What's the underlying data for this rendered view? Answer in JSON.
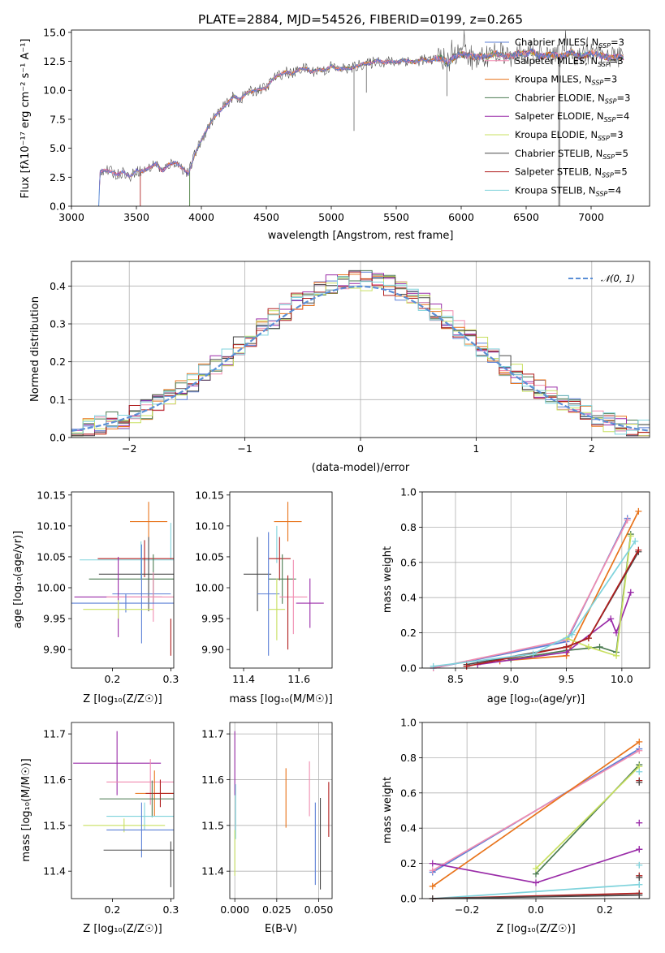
{
  "figure_title": "PLATE=2884, MJD=54526, FIBERID=0199, z=0.265",
  "chart_data": [
    {
      "id": "spectrum",
      "type": "line",
      "xlabel": "wavelength [Angstrom, rest frame]",
      "ylabel": "Flux [fλ10⁻¹⁷ erg cm⁻² s⁻¹ A⁻¹]",
      "xlim": [
        3000,
        7450
      ],
      "ylim": [
        0,
        15.2
      ],
      "xticks": [
        "3000",
        "3500",
        "4000",
        "4500",
        "5000",
        "5500",
        "6000",
        "6500",
        "7000"
      ],
      "yticks": [
        "0.0",
        "2.5",
        "5.0",
        "7.5",
        "10.0",
        "12.5",
        "15.0"
      ],
      "legend_position": "top-right",
      "legend": [
        {
          "name": "Chabrier MILES, N",
          "sub": "SSP",
          "val": "=3",
          "color": "#5b7fd6"
        },
        {
          "name": "Salpeter MILES, N",
          "sub": "SSP",
          "val": "=3",
          "color": "#f08cb0"
        },
        {
          "name": "Kroupa MILES, N",
          "sub": "SSP",
          "val": "=3",
          "color": "#e8731a"
        },
        {
          "name": "Chabrier ELODIE, N",
          "sub": "SSP",
          "val": "=3",
          "color": "#4a7a50"
        },
        {
          "name": "Salpeter ELODIE, N",
          "sub": "SSP",
          "val": "=4",
          "color": "#9a2ca8"
        },
        {
          "name": "Kroupa ELODIE, N",
          "sub": "SSP",
          "val": "=3",
          "color": "#c8e060"
        },
        {
          "name": "Chabrier STELIB, N",
          "sub": "SSP",
          "val": "=5",
          "color": "#4a4a4a"
        },
        {
          "name": "Salpeter STELIB, N",
          "sub": "SSP",
          "val": "=5",
          "color": "#b01e1e"
        },
        {
          "name": "Kroupa STELIB, N",
          "sub": "SSP",
          "val": "=4",
          "color": "#7fd3dc"
        }
      ],
      "series_outline": {
        "x": [
          3210,
          3220,
          3250,
          3300,
          3350,
          3400,
          3450,
          3500,
          3550,
          3600,
          3650,
          3700,
          3750,
          3800,
          3850,
          3900,
          3950,
          4000,
          4050,
          4100,
          4150,
          4200,
          4250,
          4300,
          4350,
          4400,
          4450,
          4500,
          4550,
          4600,
          4650,
          4700,
          4750,
          4800,
          4850,
          4900,
          4950,
          5000,
          5050,
          5100,
          5150,
          5200,
          5250,
          5300,
          5350,
          5400,
          5450,
          5500,
          5550,
          5600,
          5650,
          5700,
          5750,
          5800,
          5850,
          5900,
          5950,
          6000,
          6050,
          6100,
          6150,
          6200,
          6250,
          6300,
          6350,
          6400,
          6450,
          6500,
          6550,
          6600,
          6650,
          6700,
          6750,
          6800,
          6850,
          6900,
          6950,
          7000,
          7050,
          7100,
          7150,
          7200,
          7250
        ],
        "y": [
          0.0,
          3.0,
          3.1,
          3.0,
          2.7,
          3.0,
          2.5,
          3.1,
          3.0,
          3.3,
          3.7,
          3.0,
          3.6,
          3.8,
          3.3,
          2.8,
          4.5,
          5.7,
          6.8,
          7.7,
          8.3,
          8.9,
          9.5,
          9.2,
          9.8,
          9.9,
          10.1,
          10.2,
          11.0,
          11.3,
          11.6,
          11.4,
          11.8,
          11.9,
          11.6,
          11.8,
          11.7,
          12.1,
          11.8,
          11.9,
          11.9,
          12.1,
          12.3,
          12.3,
          12.6,
          12.4,
          12.5,
          12.4,
          12.6,
          12.5,
          12.4,
          12.7,
          12.5,
          12.7,
          12.8,
          12.3,
          12.9,
          13.1,
          13.0,
          12.9,
          12.9,
          12.9,
          13.2,
          13.1,
          12.9,
          13.0,
          13.2,
          13.1,
          13.4,
          12.9,
          13.0,
          13.1,
          12.9,
          13.0,
          13.3,
          12.9,
          13.0,
          13.2,
          13.1,
          12.9,
          12.8,
          12.9,
          12.8
        ]
      },
      "cutoffs": [
        {
          "series": "Salpeter STELIB",
          "x": 3530
        },
        {
          "series": "Chabrier ELODIE",
          "x": 3910
        },
        {
          "series": "Kroupa ELODIE",
          "x": 3910
        },
        {
          "series": "Chabrier MILES",
          "x": 3210
        },
        {
          "series": "Kroupa STELIB",
          "x": 3210
        }
      ]
    },
    {
      "id": "residuals",
      "type": "line",
      "xlabel": "(data-model)/error",
      "ylabel": "Normed distribution",
      "xlim": [
        -2.5,
        2.5
      ],
      "ylim": [
        0,
        0.465
      ],
      "xticks": [
        "−2",
        "−1",
        "0",
        "1",
        "2"
      ],
      "yticks": [
        "0.0",
        "0.1",
        "0.2",
        "0.3",
        "0.4"
      ],
      "grid": true,
      "legend_position": "top-right",
      "legend_label": "𝒩(0, 1)",
      "gaussian_color": "#5b8fd6"
    },
    {
      "id": "age-vs-Z",
      "type": "scatter",
      "xlabel": "Z [log₁₀(Z/Z☉)]",
      "ylabel": "age  [log₁₀(age/yr)]",
      "xlim": [
        0.13,
        0.305
      ],
      "ylim": [
        9.87,
        10.155
      ],
      "xticks": [
        "0.2",
        "0.3"
      ],
      "yticks": [
        "9.90",
        "9.95",
        "10.00",
        "10.05",
        "10.10",
        "10.15"
      ],
      "points": [
        {
          "x": 0.262,
          "y": 10.107,
          "xerr": 0.032,
          "yerr": 0.032,
          "color": "#e8731a"
        },
        {
          "x": 0.3,
          "y": 10.075,
          "xerr": 0.0,
          "yerr": 0.03,
          "color": "#7fd3dc"
        },
        {
          "x": 0.249,
          "y": 10.045,
          "xerr": 0.105,
          "yerr": 0.03,
          "color": "#7fd3dc"
        },
        {
          "x": 0.255,
          "y": 10.047,
          "xerr": 0.08,
          "yerr": 0.03,
          "color": "#b01e1e"
        },
        {
          "x": 0.262,
          "y": 10.022,
          "xerr": 0.085,
          "yerr": 0.06,
          "color": "#4a4a4a"
        },
        {
          "x": 0.27,
          "y": 10.014,
          "xerr": 0.11,
          "yerr": 0.04,
          "color": "#4a7a50"
        },
        {
          "x": 0.25,
          "y": 9.99,
          "xerr": 0.05,
          "yerr": 0.08,
          "color": "#5b7fd6"
        },
        {
          "x": 0.21,
          "y": 9.985,
          "xerr": 0.075,
          "yerr": 0.065,
          "color": "#9a2ca8"
        },
        {
          "x": 0.27,
          "y": 9.985,
          "xerr": 0.08,
          "yerr": 0.04,
          "color": "#f08cb0"
        },
        {
          "x": 0.223,
          "y": 9.975,
          "xerr": 0.095,
          "yerr": 0.015,
          "color": "#5b7fd6"
        },
        {
          "x": 0.21,
          "y": 9.965,
          "xerr": 0.06,
          "yerr": 0.015,
          "color": "#c8e060"
        },
        {
          "x": 0.3,
          "y": 9.92,
          "xerr": 0.0,
          "yerr": 0.03,
          "color": "#b01e1e"
        }
      ]
    },
    {
      "id": "age-vs-mass",
      "type": "scatter",
      "xlabel": "mass [log₁₀(M/M☉)]",
      "ylabel": "",
      "xlim": [
        11.35,
        11.72
      ],
      "ylim": [
        9.87,
        10.155
      ],
      "xticks": [
        "11.4",
        "11.6"
      ],
      "yticks": [
        "9.90",
        "9.95",
        "10.00",
        "10.05",
        "10.10",
        "10.15"
      ],
      "points": [
        {
          "x": 11.56,
          "y": 10.107,
          "xerr": 0.05,
          "yerr": 0.032,
          "color": "#e8731a"
        },
        {
          "x": 11.52,
          "y": 10.07,
          "xerr": 0.0,
          "yerr": 0.03,
          "color": "#7fd3dc"
        },
        {
          "x": 11.53,
          "y": 10.047,
          "xerr": 0.04,
          "yerr": 0.035,
          "color": "#b01e1e"
        },
        {
          "x": 11.45,
          "y": 10.022,
          "xerr": 0.05,
          "yerr": 0.06,
          "color": "#4a4a4a"
        },
        {
          "x": 11.54,
          "y": 10.014,
          "xerr": 0.05,
          "yerr": 0.04,
          "color": "#4a7a50"
        },
        {
          "x": 11.49,
          "y": 9.99,
          "xerr": 0.04,
          "yerr": 0.1,
          "color": "#5b7fd6"
        },
        {
          "x": 11.58,
          "y": 9.985,
          "xerr": 0.05,
          "yerr": 0.06,
          "color": "#f08cb0"
        },
        {
          "x": 11.64,
          "y": 9.975,
          "xerr": 0.05,
          "yerr": 0.04,
          "color": "#9a2ca8"
        },
        {
          "x": 11.52,
          "y": 9.965,
          "xerr": 0.03,
          "yerr": 0.05,
          "color": "#c8e060"
        },
        {
          "x": 11.56,
          "y": 9.96,
          "xerr": 0.0,
          "yerr": 0.06,
          "color": "#b01e1e"
        }
      ]
    },
    {
      "id": "massweight-vs-age",
      "type": "line",
      "xlabel": "age  [log₁₀(age/yr)]",
      "ylabel": "mass weight",
      "xlim": [
        8.2,
        10.25
      ],
      "ylim": [
        0,
        1.0
      ],
      "xticks": [
        "8.5",
        "9.0",
        "9.5",
        "10.0"
      ],
      "yticks": [
        "0.0",
        "0.2",
        "0.4",
        "0.6",
        "0.8",
        "1.0"
      ],
      "grid": true,
      "series": [
        {
          "color": "#5b7fd6",
          "x": [
            8.3,
            9.5,
            10.05
          ],
          "y": [
            0.0,
            0.15,
            0.85
          ]
        },
        {
          "color": "#f08cb0",
          "x": [
            8.3,
            9.5,
            10.05
          ],
          "y": [
            0.0,
            0.16,
            0.84
          ]
        },
        {
          "color": "#e8731a",
          "x": [
            8.9,
            9.5,
            10.15
          ],
          "y": [
            0.04,
            0.07,
            0.89
          ]
        },
        {
          "color": "#4a7a50",
          "x": [
            9.0,
            9.5,
            9.8,
            9.95,
            10.08
          ],
          "y": [
            0.05,
            0.1,
            0.12,
            0.09,
            0.76
          ]
        },
        {
          "color": "#9a2ca8",
          "x": [
            8.7,
            9.5,
            9.9,
            9.95,
            10.08
          ],
          "y": [
            0.02,
            0.09,
            0.28,
            0.2,
            0.43
          ]
        },
        {
          "color": "#c8e060",
          "x": [
            9.5,
            9.7,
            9.95,
            10.08
          ],
          "y": [
            0.17,
            0.12,
            0.07,
            0.75
          ]
        },
        {
          "color": "#4a4a4a",
          "x": [
            8.6,
            9.5,
            9.7,
            10.15
          ],
          "y": [
            0.02,
            0.12,
            0.17,
            0.66
          ]
        },
        {
          "color": "#b01e1e",
          "x": [
            8.6,
            9.5,
            9.7,
            10.15
          ],
          "y": [
            0.01,
            0.12,
            0.17,
            0.67
          ]
        },
        {
          "color": "#7fd3dc",
          "x": [
            8.3,
            9.2,
            9.55,
            10.12
          ],
          "y": [
            0.01,
            0.08,
            0.19,
            0.72
          ]
        }
      ]
    },
    {
      "id": "mass-vs-Z",
      "type": "scatter",
      "xlabel": "Z [log₁₀(Z/Z☉)]",
      "ylabel": "mass [log₁₀(M/M☉)]",
      "xlim": [
        0.13,
        0.305
      ],
      "ylim": [
        11.34,
        11.725
      ],
      "xticks": [
        "0.2",
        "0.3"
      ],
      "yticks": [
        "11.4",
        "11.5",
        "11.6",
        "11.7"
      ],
      "points": [
        {
          "x": 0.208,
          "y": 11.636,
          "xerr": 0.075,
          "yerr": 0.07,
          "color": "#9a2ca8"
        },
        {
          "x": 0.265,
          "y": 11.595,
          "xerr": 0.075,
          "yerr": 0.05,
          "color": "#f08cb0"
        },
        {
          "x": 0.272,
          "y": 11.57,
          "xerr": 0.033,
          "yerr": 0.05,
          "color": "#e8731a"
        },
        {
          "x": 0.282,
          "y": 11.57,
          "xerr": 0.025,
          "yerr": 0.03,
          "color": "#b01e1e"
        },
        {
          "x": 0.268,
          "y": 11.558,
          "xerr": 0.09,
          "yerr": 0.04,
          "color": "#4a7a50"
        },
        {
          "x": 0.255,
          "y": 11.52,
          "xerr": 0.065,
          "yerr": 0.03,
          "color": "#7fd3dc"
        },
        {
          "x": 0.22,
          "y": 11.5,
          "xerr": 0.07,
          "yerr": 0.015,
          "color": "#c8e060"
        },
        {
          "x": 0.25,
          "y": 11.49,
          "xerr": 0.06,
          "yerr": 0.06,
          "color": "#5b7fd6"
        },
        {
          "x": 0.25,
          "y": 11.446,
          "xerr": 0.065,
          "yerr": 0.0,
          "color": "#4a4a4a"
        },
        {
          "x": 0.3,
          "y": 11.415,
          "xerr": 0.0,
          "yerr": 0.05,
          "color": "#4a4a4a"
        }
      ]
    },
    {
      "id": "mass-vs-EBV",
      "type": "scatter",
      "xlabel": "E(B-V)",
      "ylabel": "",
      "xlim": [
        -0.003,
        0.058
      ],
      "ylim": [
        11.34,
        11.725
      ],
      "xticks": [
        "0.000",
        "0.025",
        "0.050"
      ],
      "yticks": [
        "11.4",
        "11.5",
        "11.6",
        "11.7"
      ],
      "grid": true,
      "points": [
        {
          "x": 0.0,
          "y": 11.636,
          "yerr": 0.07,
          "color": "#9a2ca8"
        },
        {
          "x": 0.0005,
          "y": 11.53,
          "yerr": 0.06,
          "color": "#7fd3dc"
        },
        {
          "x": 0.0,
          "y": 11.44,
          "yerr": 0.05,
          "color": "#c8e060"
        },
        {
          "x": 0.0305,
          "y": 11.56,
          "yerr": 0.065,
          "color": "#e8731a"
        },
        {
          "x": 0.0445,
          "y": 11.58,
          "yerr": 0.06,
          "color": "#f08cb0"
        },
        {
          "x": 0.048,
          "y": 11.46,
          "yerr": 0.09,
          "color": "#5b7fd6"
        },
        {
          "x": 0.051,
          "y": 11.46,
          "yerr": 0.1,
          "color": "#4a4a4a"
        },
        {
          "x": 0.056,
          "y": 11.535,
          "yerr": 0.06,
          "color": "#b01e1e"
        }
      ]
    },
    {
      "id": "massweight-vs-Z",
      "type": "line",
      "xlabel": "Z [log₁₀(Z/Z☉)]",
      "ylabel": "mass weight",
      "xlim": [
        -0.33,
        0.33
      ],
      "ylim": [
        0,
        1.0
      ],
      "xticks": [
        "−0.2",
        "0.0",
        "0.2"
      ],
      "yticks": [
        "0.0",
        "0.2",
        "0.4",
        "0.6",
        "0.8",
        "1.0"
      ],
      "grid": true,
      "series": [
        {
          "color": "#5b7fd6",
          "x": [
            -0.3,
            0.3
          ],
          "y": [
            0.15,
            0.85
          ]
        },
        {
          "color": "#f08cb0",
          "x": [
            -0.3,
            0.3
          ],
          "y": [
            0.16,
            0.84
          ]
        },
        {
          "color": "#e8731a",
          "x": [
            -0.3,
            0.3
          ],
          "y": [
            0.07,
            0.89
          ]
        },
        {
          "color": "#4a7a50",
          "x": [
            0.0,
            0.3
          ],
          "y": [
            0.14,
            0.76
          ]
        },
        {
          "color": "#c8e060",
          "x": [
            0.0,
            0.3
          ],
          "y": [
            0.17,
            0.75
          ]
        },
        {
          "color": "#9a2ca8",
          "x": [
            -0.3,
            0.0,
            0.3
          ],
          "y": [
            0.2,
            0.09,
            0.28
          ]
        },
        {
          "color": "#7fd3dc",
          "x": [
            -0.3,
            0.3
          ],
          "y": [
            0.0,
            0.08
          ]
        },
        {
          "color": "#b01e1e",
          "x": [
            -0.3,
            0.3
          ],
          "y": [
            0.0,
            0.03
          ]
        },
        {
          "color": "#4a4a4a",
          "x": [
            -0.3,
            0.3
          ],
          "y": [
            0.0,
            0.02
          ]
        }
      ],
      "edge_marks": [
        {
          "color": "#b01e1e",
          "y": [
            0.67,
            0.13,
            0.03
          ]
        },
        {
          "color": "#4a4a4a",
          "y": [
            0.66,
            0.12,
            0.02
          ]
        },
        {
          "color": "#9a2ca8",
          "y": [
            0.43,
            0.28
          ]
        },
        {
          "color": "#7fd3dc",
          "y": [
            0.72,
            0.19,
            0.08
          ]
        }
      ]
    }
  ]
}
